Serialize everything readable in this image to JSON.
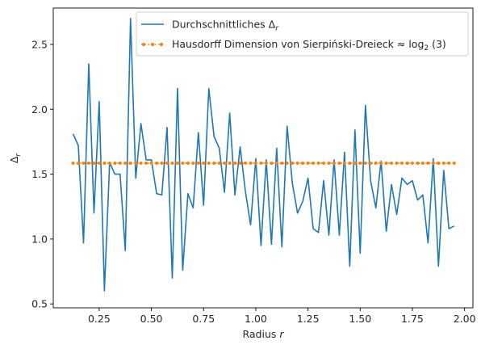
{
  "chart_data": {
    "type": "line",
    "title": "",
    "xlabel": "Radius r",
    "ylabel": "Δr",
    "xlim": [
      0.03,
      2.04
    ],
    "ylim": [
      0.47,
      2.78
    ],
    "xticks": [
      0.25,
      0.5,
      0.75,
      1.0,
      1.25,
      1.5,
      1.75,
      2.0
    ],
    "xtick_labels": [
      "0.25",
      "0.50",
      "0.75",
      "1.00",
      "1.25",
      "1.50",
      "1.75",
      "2.00"
    ],
    "yticks": [
      0.5,
      1.0,
      1.5,
      2.0,
      2.5
    ],
    "ytick_labels": [
      "0.5",
      "1.0",
      "1.5",
      "2.0",
      "2.5"
    ],
    "grid": false,
    "legend_position": "top-right",
    "legend": [
      {
        "label": "Durchschnittliches Δr",
        "color": "#1f77b4",
        "style": "solid"
      },
      {
        "label": "Hausdorff Dimension von Sierpiński-Dreieck ≈ log2 (3)",
        "color": "#ff7f0e",
        "style": "dotted"
      }
    ],
    "series": [
      {
        "name": "Durchschnittliches Δr",
        "color": "#1f77b4",
        "x": [
          0.125,
          0.15,
          0.175,
          0.2,
          0.225,
          0.25,
          0.275,
          0.3,
          0.325,
          0.35,
          0.375,
          0.4,
          0.425,
          0.45,
          0.475,
          0.5,
          0.525,
          0.55,
          0.575,
          0.6,
          0.625,
          0.65,
          0.675,
          0.7,
          0.725,
          0.75,
          0.775,
          0.8,
          0.825,
          0.85,
          0.875,
          0.9,
          0.925,
          0.95,
          0.975,
          1.0,
          1.025,
          1.05,
          1.075,
          1.1,
          1.125,
          1.15,
          1.175,
          1.2,
          1.225,
          1.25,
          1.275,
          1.3,
          1.325,
          1.35,
          1.375,
          1.4,
          1.425,
          1.45,
          1.475,
          1.5,
          1.525,
          1.55,
          1.575,
          1.6,
          1.625,
          1.65,
          1.675,
          1.7,
          1.725,
          1.75,
          1.775,
          1.8,
          1.825,
          1.85,
          1.875,
          1.9,
          1.925,
          1.95
        ],
        "values": [
          1.81,
          1.72,
          0.97,
          2.35,
          1.2,
          2.06,
          0.6,
          1.59,
          1.5,
          1.5,
          0.91,
          2.7,
          1.47,
          1.89,
          1.61,
          1.61,
          1.35,
          1.34,
          1.86,
          0.7,
          2.16,
          0.76,
          1.35,
          1.24,
          1.82,
          1.26,
          2.16,
          1.79,
          1.7,
          1.36,
          1.97,
          1.34,
          1.71,
          1.37,
          1.11,
          1.62,
          0.95,
          1.61,
          0.96,
          1.7,
          0.94,
          1.87,
          1.43,
          1.2,
          1.29,
          1.47,
          1.08,
          1.05,
          1.45,
          1.03,
          1.61,
          1.03,
          1.67,
          0.79,
          1.84,
          0.89,
          2.03,
          1.45,
          1.24,
          1.6,
          1.06,
          1.42,
          1.19,
          1.47,
          1.42,
          1.45,
          1.3,
          1.34,
          0.97,
          1.62,
          0.79,
          1.53,
          1.08,
          1.1
        ]
      },
      {
        "name": "Hausdorff Dimension von Sierpiński-Dreieck ≈ log2 (3)",
        "color": "#ff7f0e",
        "constant": 1.585,
        "x": [
          0.125,
          0.15,
          0.175,
          0.2,
          0.225,
          0.25,
          0.275,
          0.3,
          0.325,
          0.35,
          0.375,
          0.4,
          0.425,
          0.45,
          0.475,
          0.5,
          0.525,
          0.55,
          0.575,
          0.6,
          0.625,
          0.65,
          0.675,
          0.7,
          0.725,
          0.75,
          0.775,
          0.8,
          0.825,
          0.85,
          0.875,
          0.9,
          0.925,
          0.95,
          0.975,
          1.0,
          1.025,
          1.05,
          1.075,
          1.1,
          1.125,
          1.15,
          1.175,
          1.2,
          1.225,
          1.25,
          1.275,
          1.3,
          1.325,
          1.35,
          1.375,
          1.4,
          1.425,
          1.45,
          1.475,
          1.5,
          1.525,
          1.55,
          1.575,
          1.6,
          1.625,
          1.65,
          1.675,
          1.7,
          1.725,
          1.75,
          1.775,
          1.8,
          1.825,
          1.85,
          1.875,
          1.9,
          1.925,
          1.95
        ]
      }
    ]
  }
}
